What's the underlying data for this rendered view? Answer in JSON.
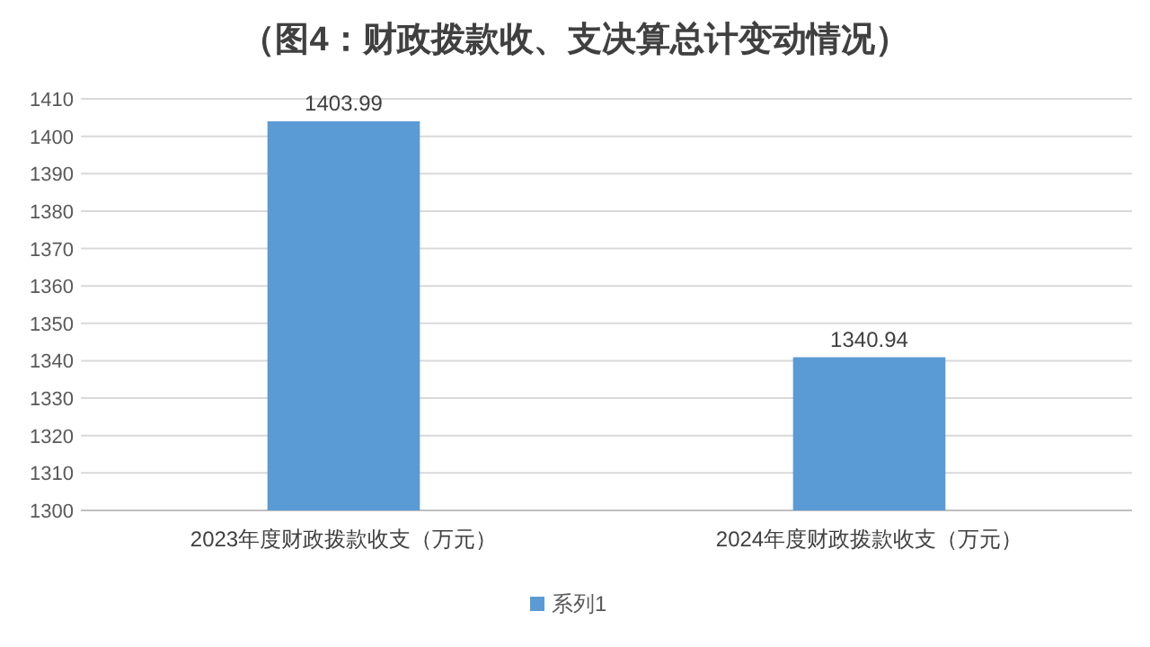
{
  "chart_data": {
    "type": "bar",
    "title": "（图4：财政拨款收、支决算总计变动情况）",
    "categories": [
      "2023年度财政拨款收支（万元）",
      "2024年度财政拨款收支（万元）"
    ],
    "series": [
      {
        "name": "系列1",
        "color": "#5b9bd5",
        "values": [
          1403.99,
          1340.94
        ]
      }
    ],
    "ylim": [
      1300,
      1410
    ],
    "yticks": [
      1300,
      1310,
      1320,
      1330,
      1340,
      1350,
      1360,
      1370,
      1380,
      1390,
      1400,
      1410
    ],
    "grid": "y",
    "legend": "bottom",
    "data_labels": true
  }
}
